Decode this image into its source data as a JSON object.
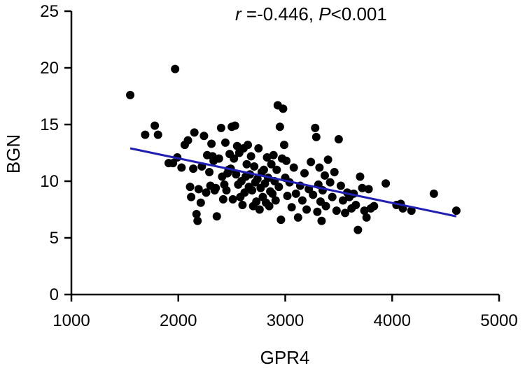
{
  "chart_data": {
    "type": "scatter",
    "title": "",
    "annotation": {
      "r_symbol": "r",
      "r_value": " =-0.446, ",
      "p_symbol": "P",
      "p_value": "<0.001"
    },
    "xlabel": "GPR4",
    "ylabel": "BGN",
    "xlim": [
      1000,
      5000
    ],
    "ylim": [
      0,
      25
    ],
    "xticks": [
      1000,
      2000,
      3000,
      4000,
      5000
    ],
    "yticks": [
      0,
      5,
      10,
      15,
      20,
      25
    ],
    "grid": false,
    "colors": {
      "points": "#000000",
      "regression": "#1f1fb4",
      "axis": "#000000"
    },
    "regression": {
      "x": [
        1550,
        4600
      ],
      "y": [
        12.9,
        6.9
      ]
    },
    "points": [
      {
        "x": 1550,
        "y": 17.6
      },
      {
        "x": 1970,
        "y": 19.9
      },
      {
        "x": 1690,
        "y": 14.1
      },
      {
        "x": 1780,
        "y": 14.9
      },
      {
        "x": 1810,
        "y": 14.1
      },
      {
        "x": 1910,
        "y": 11.6
      },
      {
        "x": 1950,
        "y": 11.6
      },
      {
        "x": 1990,
        "y": 12.1
      },
      {
        "x": 2030,
        "y": 11.2
      },
      {
        "x": 2060,
        "y": 13.2
      },
      {
        "x": 2090,
        "y": 13.6
      },
      {
        "x": 2110,
        "y": 9.5
      },
      {
        "x": 2120,
        "y": 8.6
      },
      {
        "x": 2140,
        "y": 11.1
      },
      {
        "x": 2150,
        "y": 14.3
      },
      {
        "x": 2170,
        "y": 7.1
      },
      {
        "x": 2180,
        "y": 6.5
      },
      {
        "x": 2190,
        "y": 9.3
      },
      {
        "x": 2210,
        "y": 8.1
      },
      {
        "x": 2220,
        "y": 11.3
      },
      {
        "x": 2240,
        "y": 14.0
      },
      {
        "x": 2260,
        "y": 9.0
      },
      {
        "x": 2270,
        "y": 12.3
      },
      {
        "x": 2290,
        "y": 10.8
      },
      {
        "x": 2300,
        "y": 9.6
      },
      {
        "x": 2310,
        "y": 13.3
      },
      {
        "x": 2320,
        "y": 12.2
      },
      {
        "x": 2330,
        "y": 11.8
      },
      {
        "x": 2340,
        "y": 9.2
      },
      {
        "x": 2350,
        "y": 9.4
      },
      {
        "x": 2360,
        "y": 6.9
      },
      {
        "x": 2380,
        "y": 12.0
      },
      {
        "x": 2400,
        "y": 14.7
      },
      {
        "x": 2410,
        "y": 10.4
      },
      {
        "x": 2420,
        "y": 8.4
      },
      {
        "x": 2430,
        "y": 9.7
      },
      {
        "x": 2440,
        "y": 13.4
      },
      {
        "x": 2450,
        "y": 9.2
      },
      {
        "x": 2460,
        "y": 10.7
      },
      {
        "x": 2470,
        "y": 11.0
      },
      {
        "x": 2480,
        "y": 12.4
      },
      {
        "x": 2490,
        "y": 11.1
      },
      {
        "x": 2500,
        "y": 14.8
      },
      {
        "x": 2510,
        "y": 8.4
      },
      {
        "x": 2520,
        "y": 12.0
      },
      {
        "x": 2530,
        "y": 14.9
      },
      {
        "x": 2540,
        "y": 10.6
      },
      {
        "x": 2550,
        "y": 13.1
      },
      {
        "x": 2560,
        "y": 9.7
      },
      {
        "x": 2570,
        "y": 12.5
      },
      {
        "x": 2580,
        "y": 8.6
      },
      {
        "x": 2590,
        "y": 10.0
      },
      {
        "x": 2600,
        "y": 7.9
      },
      {
        "x": 2610,
        "y": 12.9
      },
      {
        "x": 2620,
        "y": 9.0
      },
      {
        "x": 2630,
        "y": 10.4
      },
      {
        "x": 2640,
        "y": 11.5
      },
      {
        "x": 2650,
        "y": 13.2
      },
      {
        "x": 2660,
        "y": 9.5
      },
      {
        "x": 2670,
        "y": 10.6
      },
      {
        "x": 2680,
        "y": 12.2
      },
      {
        "x": 2690,
        "y": 9.2
      },
      {
        "x": 2700,
        "y": 7.8
      },
      {
        "x": 2710,
        "y": 11.3
      },
      {
        "x": 2720,
        "y": 9.9
      },
      {
        "x": 2730,
        "y": 8.2
      },
      {
        "x": 2740,
        "y": 10.2
      },
      {
        "x": 2750,
        "y": 12.9
      },
      {
        "x": 2760,
        "y": 7.5
      },
      {
        "x": 2770,
        "y": 9.4
      },
      {
        "x": 2780,
        "y": 10.8
      },
      {
        "x": 2790,
        "y": 8.6
      },
      {
        "x": 2800,
        "y": 11.0
      },
      {
        "x": 2810,
        "y": 9.8
      },
      {
        "x": 2820,
        "y": 8.1
      },
      {
        "x": 2830,
        "y": 12.1
      },
      {
        "x": 2840,
        "y": 10.3
      },
      {
        "x": 2850,
        "y": 7.8
      },
      {
        "x": 2860,
        "y": 9.1
      },
      {
        "x": 2870,
        "y": 11.5
      },
      {
        "x": 2880,
        "y": 8.9
      },
      {
        "x": 2890,
        "y": 12.3
      },
      {
        "x": 2900,
        "y": 10.0
      },
      {
        "x": 2910,
        "y": 8.3
      },
      {
        "x": 2920,
        "y": 11.0
      },
      {
        "x": 2930,
        "y": 16.7
      },
      {
        "x": 2940,
        "y": 9.5
      },
      {
        "x": 2950,
        "y": 14.8
      },
      {
        "x": 2960,
        "y": 6.6
      },
      {
        "x": 2970,
        "y": 12.0
      },
      {
        "x": 2980,
        "y": 16.4
      },
      {
        "x": 2990,
        "y": 13.2
      },
      {
        "x": 3000,
        "y": 10.3
      },
      {
        "x": 3010,
        "y": 11.8
      },
      {
        "x": 3020,
        "y": 8.7
      },
      {
        "x": 3040,
        "y": 9.9
      },
      {
        "x": 3060,
        "y": 7.7
      },
      {
        "x": 3080,
        "y": 11.2
      },
      {
        "x": 3100,
        "y": 8.9
      },
      {
        "x": 3120,
        "y": 6.8
      },
      {
        "x": 3140,
        "y": 9.6
      },
      {
        "x": 3160,
        "y": 8.3
      },
      {
        "x": 3180,
        "y": 10.7
      },
      {
        "x": 3200,
        "y": 7.5
      },
      {
        "x": 3220,
        "y": 9.3
      },
      {
        "x": 3240,
        "y": 11.7
      },
      {
        "x": 3260,
        "y": 8.8
      },
      {
        "x": 3280,
        "y": 14.7
      },
      {
        "x": 3290,
        "y": 13.9
      },
      {
        "x": 3300,
        "y": 7.3
      },
      {
        "x": 3310,
        "y": 9.7
      },
      {
        "x": 3320,
        "y": 11.2
      },
      {
        "x": 3330,
        "y": 8.2
      },
      {
        "x": 3340,
        "y": 6.5
      },
      {
        "x": 3350,
        "y": 9.2
      },
      {
        "x": 3370,
        "y": 10.5
      },
      {
        "x": 3380,
        "y": 7.8
      },
      {
        "x": 3400,
        "y": 11.9
      },
      {
        "x": 3420,
        "y": 9.9
      },
      {
        "x": 3440,
        "y": 8.6
      },
      {
        "x": 3460,
        "y": 10.8
      },
      {
        "x": 3480,
        "y": 7.4
      },
      {
        "x": 3500,
        "y": 13.7
      },
      {
        "x": 3520,
        "y": 9.6
      },
      {
        "x": 3540,
        "y": 8.3
      },
      {
        "x": 3560,
        "y": 7.2
      },
      {
        "x": 3580,
        "y": 9.0
      },
      {
        "x": 3600,
        "y": 8.6
      },
      {
        "x": 3620,
        "y": 7.6
      },
      {
        "x": 3640,
        "y": 8.9
      },
      {
        "x": 3660,
        "y": 7.9
      },
      {
        "x": 3680,
        "y": 5.7
      },
      {
        "x": 3700,
        "y": 10.4
      },
      {
        "x": 3720,
        "y": 9.4
      },
      {
        "x": 3740,
        "y": 7.4
      },
      {
        "x": 3760,
        "y": 6.8
      },
      {
        "x": 3780,
        "y": 9.3
      },
      {
        "x": 3800,
        "y": 7.6
      },
      {
        "x": 3830,
        "y": 7.8
      },
      {
        "x": 3940,
        "y": 9.8
      },
      {
        "x": 4040,
        "y": 7.9
      },
      {
        "x": 4080,
        "y": 8.0
      },
      {
        "x": 4100,
        "y": 7.6
      },
      {
        "x": 4180,
        "y": 7.4
      },
      {
        "x": 4390,
        "y": 8.9
      },
      {
        "x": 4600,
        "y": 7.4
      }
    ]
  }
}
